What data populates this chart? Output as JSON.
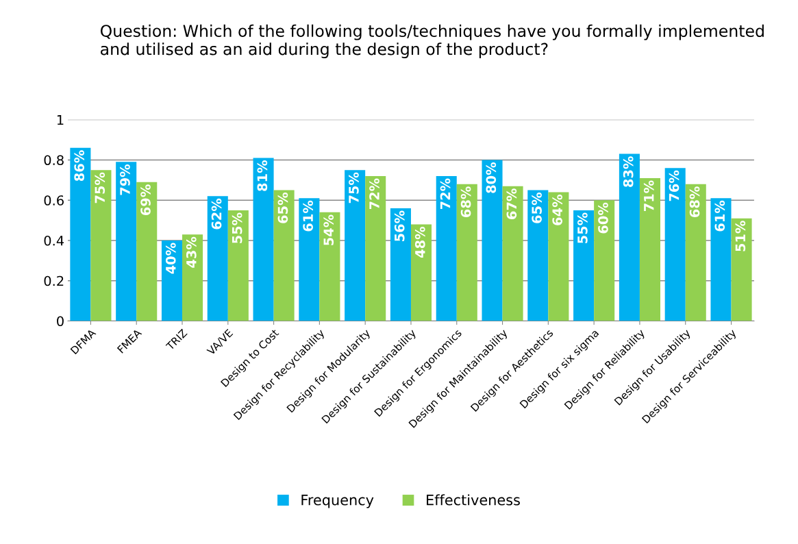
{
  "chart_data": {
    "type": "bar",
    "title": "Question: Which of the following tools/techniques have you formally implemented and utilised as an aid during the design of the product?",
    "categories": [
      "DFMA",
      "FMEA",
      "TRIZ",
      "VA/VE",
      "Design to Cost",
      "Design for Recyclability",
      "Design for Modularity",
      "Design for Sustainability",
      "Design for Ergonomics",
      "Design for Maintainability",
      "Design for Aesthetics",
      "Design for six sigma",
      "Design for Reliability",
      "Design for Usability",
      "Design for Serviceability"
    ],
    "series": [
      {
        "name": "Frequency",
        "color": "#00b0f0",
        "values": [
          0.86,
          0.79,
          0.4,
          0.62,
          0.81,
          0.61,
          0.75,
          0.56,
          0.72,
          0.8,
          0.65,
          0.55,
          0.83,
          0.76,
          0.61
        ],
        "value_labels": [
          "86%",
          "79%",
          "40%",
          "62%",
          "81%",
          "61%",
          "75%",
          "56%",
          "72%",
          "80%",
          "65%",
          "55%",
          "83%",
          "76%",
          "61%"
        ]
      },
      {
        "name": "Effectiveness",
        "color": "#92d050",
        "values": [
          0.75,
          0.69,
          0.43,
          0.55,
          0.65,
          0.54,
          0.72,
          0.48,
          0.68,
          0.67,
          0.64,
          0.6,
          0.71,
          0.68,
          0.51
        ],
        "value_labels": [
          "75%",
          "69%",
          "43%",
          "55%",
          "65%",
          "54%",
          "72%",
          "48%",
          "68%",
          "67%",
          "64%",
          "60%",
          "71%",
          "68%",
          "51%"
        ]
      }
    ],
    "ylim": [
      0,
      1
    ],
    "yticks": [
      0,
      0.2,
      0.4,
      0.6,
      0.8,
      1
    ],
    "grid": "y",
    "legend": "bottom"
  }
}
